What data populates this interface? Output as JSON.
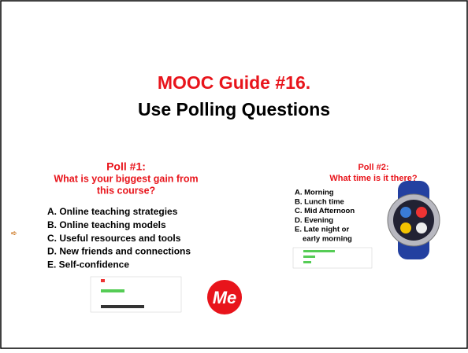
{
  "slide": {
    "title": {
      "line1": "MOOC Guide #16.",
      "line2": "Use Polling Questions"
    },
    "poll1": {
      "heading": "Poll #1:",
      "question": [
        "What is your biggest gain from",
        "this course?"
      ],
      "options": [
        "A. Online teaching strategies",
        "B. Online teaching models",
        "C. Useful resources and tools",
        "D. New friends and connections",
        "E. Self-confidence"
      ],
      "logo": "Me"
    },
    "poll2": {
      "heading": "Poll #2:",
      "question": "What time is it there?",
      "options": [
        "A. Morning",
        "B. Lunch time",
        "C. Mid Afternoon",
        "D. Evening",
        "E. Late night or",
        "early morning"
      ]
    }
  }
}
